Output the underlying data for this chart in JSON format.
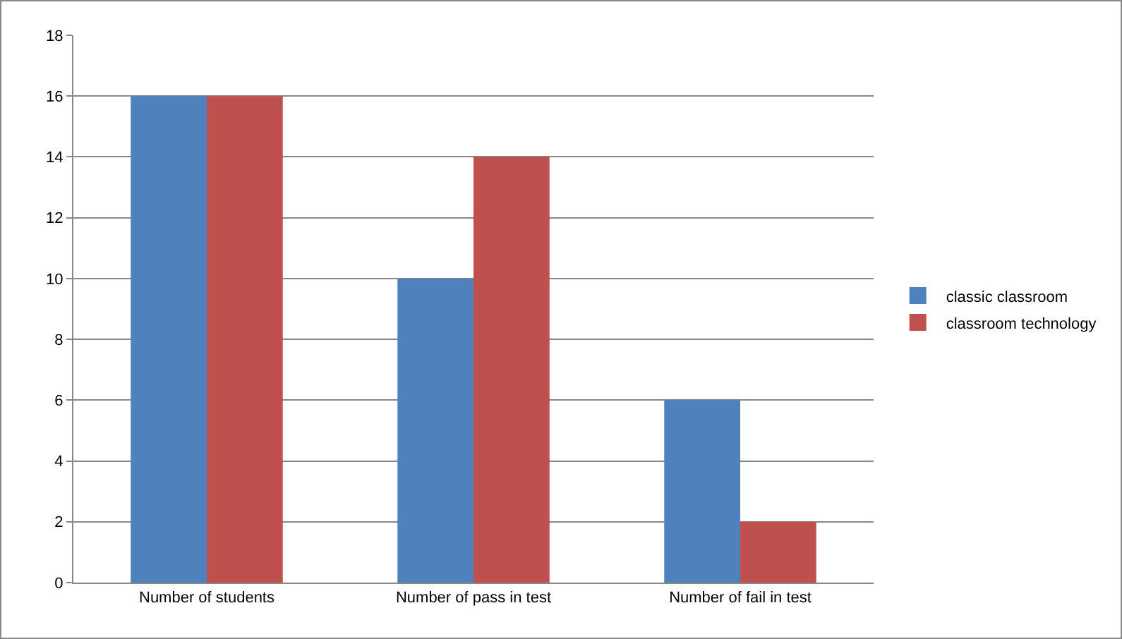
{
  "chart_data": {
    "type": "bar",
    "categories": [
      "Number of students",
      "Number of pass in test",
      "Number of fail in test"
    ],
    "series": [
      {
        "name": "classic classroom",
        "color": "#4f81bd",
        "values": [
          16,
          10,
          6
        ]
      },
      {
        "name": "classroom technology",
        "color": "#c0504d",
        "values": [
          16,
          14,
          2
        ]
      }
    ],
    "ylim": [
      0,
      18
    ],
    "yticks": [
      0,
      2,
      4,
      6,
      8,
      10,
      12,
      14,
      16,
      18
    ],
    "grid": "y",
    "legend": "right"
  }
}
